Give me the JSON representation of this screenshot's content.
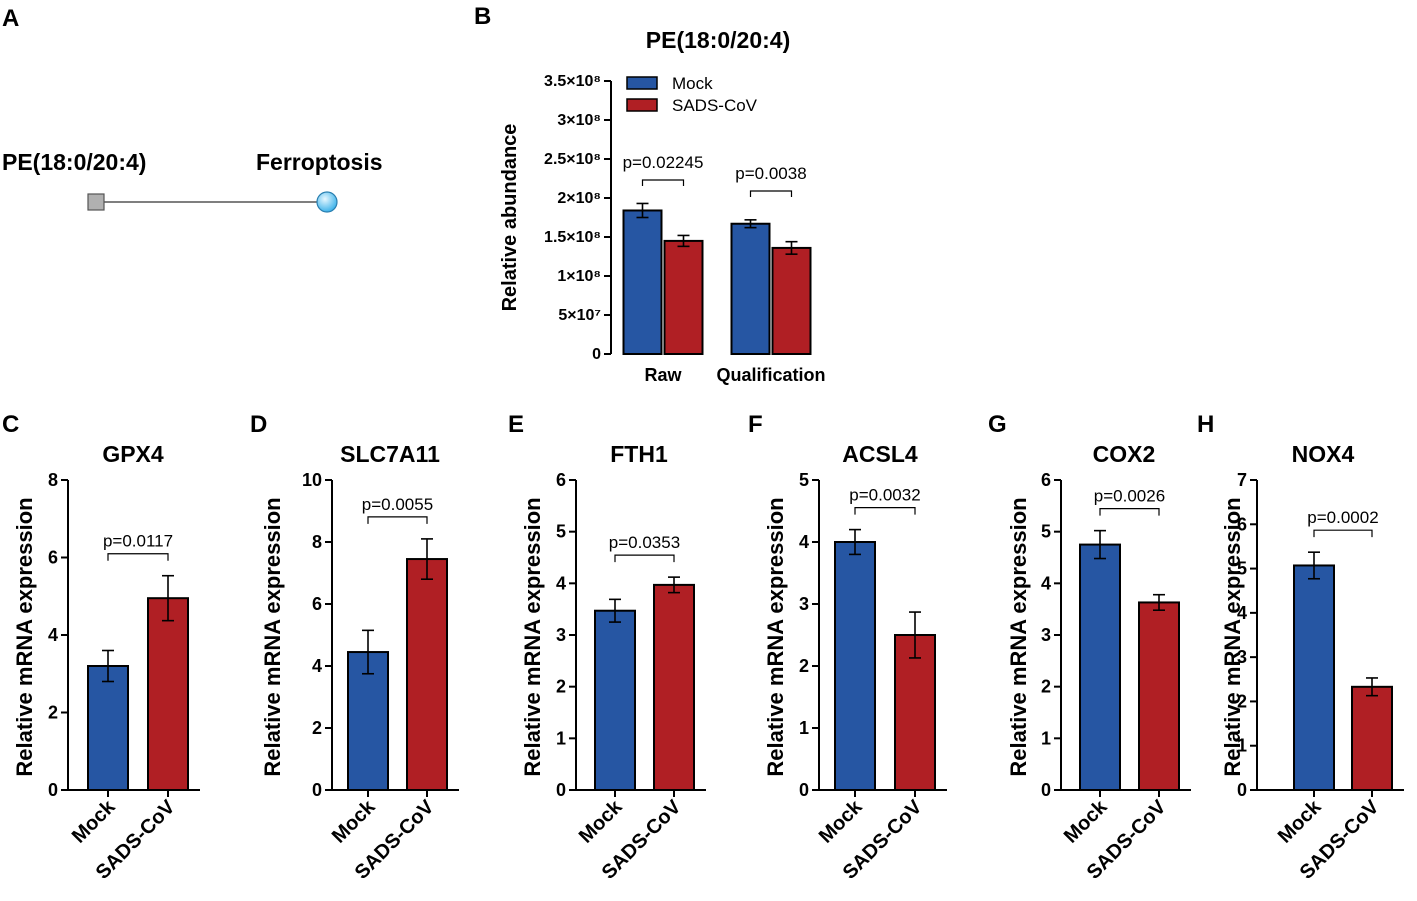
{
  "figure": {
    "panel_a": {
      "letter": "A",
      "source_label": "PE(18:0/20:4)",
      "target_label": "Ferroptosis"
    },
    "colors": {
      "mock": "#2656a3",
      "sads": "#b01f24"
    }
  },
  "chart_data": [
    {
      "panel": "B",
      "type": "bar",
      "title": "PE(18:0/20:4)",
      "ylabel": "Relative abundance",
      "xlabel": "",
      "categories": [
        "Raw",
        "Qualification"
      ],
      "series": [
        {
          "name": "Mock",
          "values": [
            184000000.0,
            167000000.0
          ],
          "errors": [
            9000000.0,
            5000000.0
          ]
        },
        {
          "name": "SADS-CoV",
          "values": [
            145000000.0,
            136000000.0
          ],
          "errors": [
            7000000.0,
            8000000.0
          ]
        }
      ],
      "ylim": [
        0,
        350000000.0
      ],
      "yticks": [
        0,
        50000000.0,
        100000000.0,
        150000000.0,
        200000000.0,
        250000000.0,
        300000000.0,
        350000000.0
      ],
      "ytick_labels": [
        "0",
        "5×10⁷",
        "1×10⁸",
        "1.5×10⁸",
        "2×10⁸",
        "2.5×10⁸",
        "3×10⁸",
        "3.5×10⁸"
      ],
      "pvalues": [
        "p=0.02245",
        "p=0.0038"
      ],
      "legend": [
        "Mock",
        "SADS-CoV"
      ],
      "legend_position": "top-left"
    },
    {
      "panel": "C",
      "type": "bar",
      "title": "GPX4",
      "ylabel": "Relative mRNA expression",
      "categories": [
        "Mock",
        "SADS-CoV"
      ],
      "values": [
        3.2,
        4.95
      ],
      "errors": [
        0.4,
        0.58
      ],
      "ylim": [
        0,
        8
      ],
      "yticks": [
        0,
        2,
        4,
        6,
        8
      ],
      "pvalue": "p=0.0117"
    },
    {
      "panel": "D",
      "type": "bar",
      "title": "SLC7A11",
      "ylabel": "Relative mRNA expression",
      "categories": [
        "Mock",
        "SADS-CoV"
      ],
      "values": [
        4.45,
        7.45
      ],
      "errors": [
        0.7,
        0.65
      ],
      "ylim": [
        0,
        10
      ],
      "yticks": [
        0,
        2,
        4,
        6,
        8,
        10
      ],
      "pvalue": "p=0.0055"
    },
    {
      "panel": "E",
      "type": "bar",
      "title": "FTH1",
      "ylabel": "Relative mRNA expression",
      "categories": [
        "Mock",
        "SADS-CoV"
      ],
      "values": [
        3.47,
        3.97
      ],
      "errors": [
        0.22,
        0.15
      ],
      "ylim": [
        0,
        6
      ],
      "yticks": [
        0,
        1,
        2,
        3,
        4,
        5,
        6
      ],
      "pvalue": "p=0.0353"
    },
    {
      "panel": "F",
      "type": "bar",
      "title": "ACSL4",
      "ylabel": "Relative mRNA expression",
      "categories": [
        "Mock",
        "SADS-CoV"
      ],
      "values": [
        4.0,
        2.5
      ],
      "errors": [
        0.2,
        0.37
      ],
      "ylim": [
        0,
        5
      ],
      "yticks": [
        0,
        1,
        2,
        3,
        4,
        5
      ],
      "pvalue": "p=0.0032"
    },
    {
      "panel": "G",
      "type": "bar",
      "title": "COX2",
      "ylabel": "Relative mRNA expression",
      "categories": [
        "Mock",
        "SADS-CoV"
      ],
      "values": [
        4.75,
        3.63
      ],
      "errors": [
        0.27,
        0.15
      ],
      "ylim": [
        0,
        6
      ],
      "yticks": [
        0,
        1,
        2,
        3,
        4,
        5,
        6
      ],
      "pvalue": "p=0.0026"
    },
    {
      "panel": "H",
      "type": "bar",
      "title": "NOX4",
      "ylabel": "Relative mRNA expression",
      "categories": [
        "Mock",
        "SADS-CoV"
      ],
      "values": [
        5.07,
        2.33
      ],
      "errors": [
        0.3,
        0.2
      ],
      "ylim": [
        0,
        7
      ],
      "yticks": [
        0,
        1,
        2,
        3,
        4,
        5,
        6,
        7
      ],
      "pvalue": "p=0.0002"
    }
  ]
}
